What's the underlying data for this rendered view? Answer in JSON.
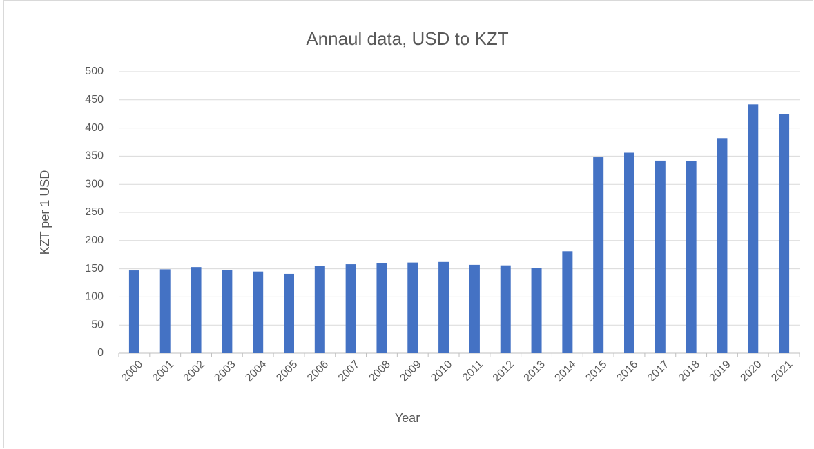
{
  "chart_data": {
    "type": "bar",
    "title": "Annaul data, USD to KZT",
    "x_label": "Year",
    "y_label": "KZT per 1 USD",
    "categories": [
      "2000",
      "2001",
      "2002",
      "2003",
      "2004",
      "2005",
      "2006",
      "2007",
      "2008",
      "2009",
      "2010",
      "2011",
      "2012",
      "2013",
      "2014",
      "2015",
      "2016",
      "2017",
      "2018",
      "2019",
      "2020",
      "2021"
    ],
    "values": [
      147,
      149,
      153,
      148,
      145,
      141,
      155,
      158,
      160,
      161,
      162,
      157,
      156,
      151,
      181,
      348,
      356,
      342,
      341,
      382,
      442,
      425
    ],
    "color": "#4472c4",
    "ylim": [
      0,
      500
    ],
    "yticks": [
      0,
      50,
      100,
      150,
      200,
      250,
      300,
      350,
      400,
      450,
      500
    ],
    "grid": true
  }
}
